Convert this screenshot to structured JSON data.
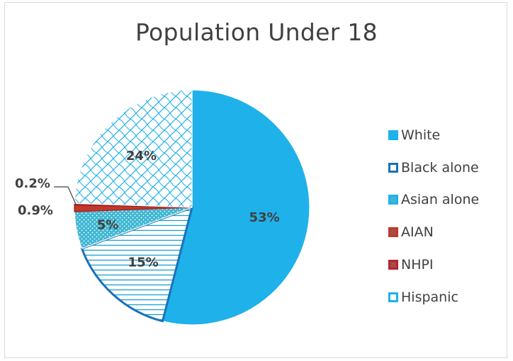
{
  "chart_data": {
    "type": "pie",
    "title": "Population Under 18",
    "categories": [
      "White",
      "Black alone",
      "Asian alone",
      "AIAN",
      "NHPI",
      "Hispanic"
    ],
    "values": [
      53,
      15,
      5,
      0.9,
      0.2,
      24
    ],
    "data_labels": [
      "53%",
      "15%",
      "5%",
      "0.9%",
      "0.2%",
      "24%"
    ],
    "colors": [
      "#1fb1ea",
      "#1a72b8",
      "#3fb7d2",
      "#c0392b",
      "#b5252e",
      "#1fb1ea"
    ],
    "fill_patterns": [
      "solid",
      "horizontal-lines",
      "dots",
      "solid",
      "solid",
      "diagonal-cross"
    ],
    "start": "12 o'clock, clockwise",
    "legend_position": "right"
  }
}
